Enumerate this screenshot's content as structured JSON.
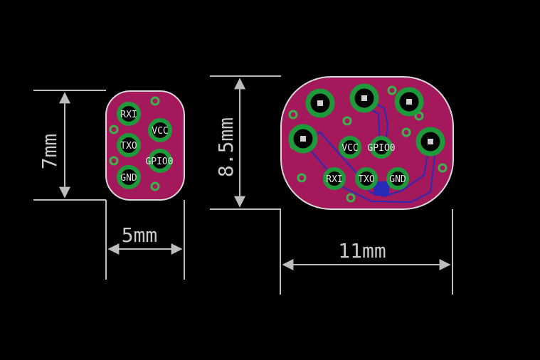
{
  "colors": {
    "background": "#000000",
    "board": "#a3195b",
    "outline": "#d8d8d8",
    "pad_ring": "#1f9a3a",
    "via": "#3cb34a",
    "trace": "#2a2ab8",
    "dimension": "#bdbdbd"
  },
  "small_board": {
    "height_label": "7mm",
    "width_label": "5mm",
    "pins": [
      {
        "label": "RXI"
      },
      {
        "label": "VCC"
      },
      {
        "label": "TXO"
      },
      {
        "label": "GPIO0"
      },
      {
        "label": "GND"
      }
    ]
  },
  "large_board": {
    "height_label": "8.5mm",
    "width_label": "11mm",
    "pins": [
      {
        "label": "VCC"
      },
      {
        "label": "GPIO0"
      },
      {
        "label": "RXI"
      },
      {
        "label": "TXO"
      },
      {
        "label": "GND"
      }
    ]
  }
}
